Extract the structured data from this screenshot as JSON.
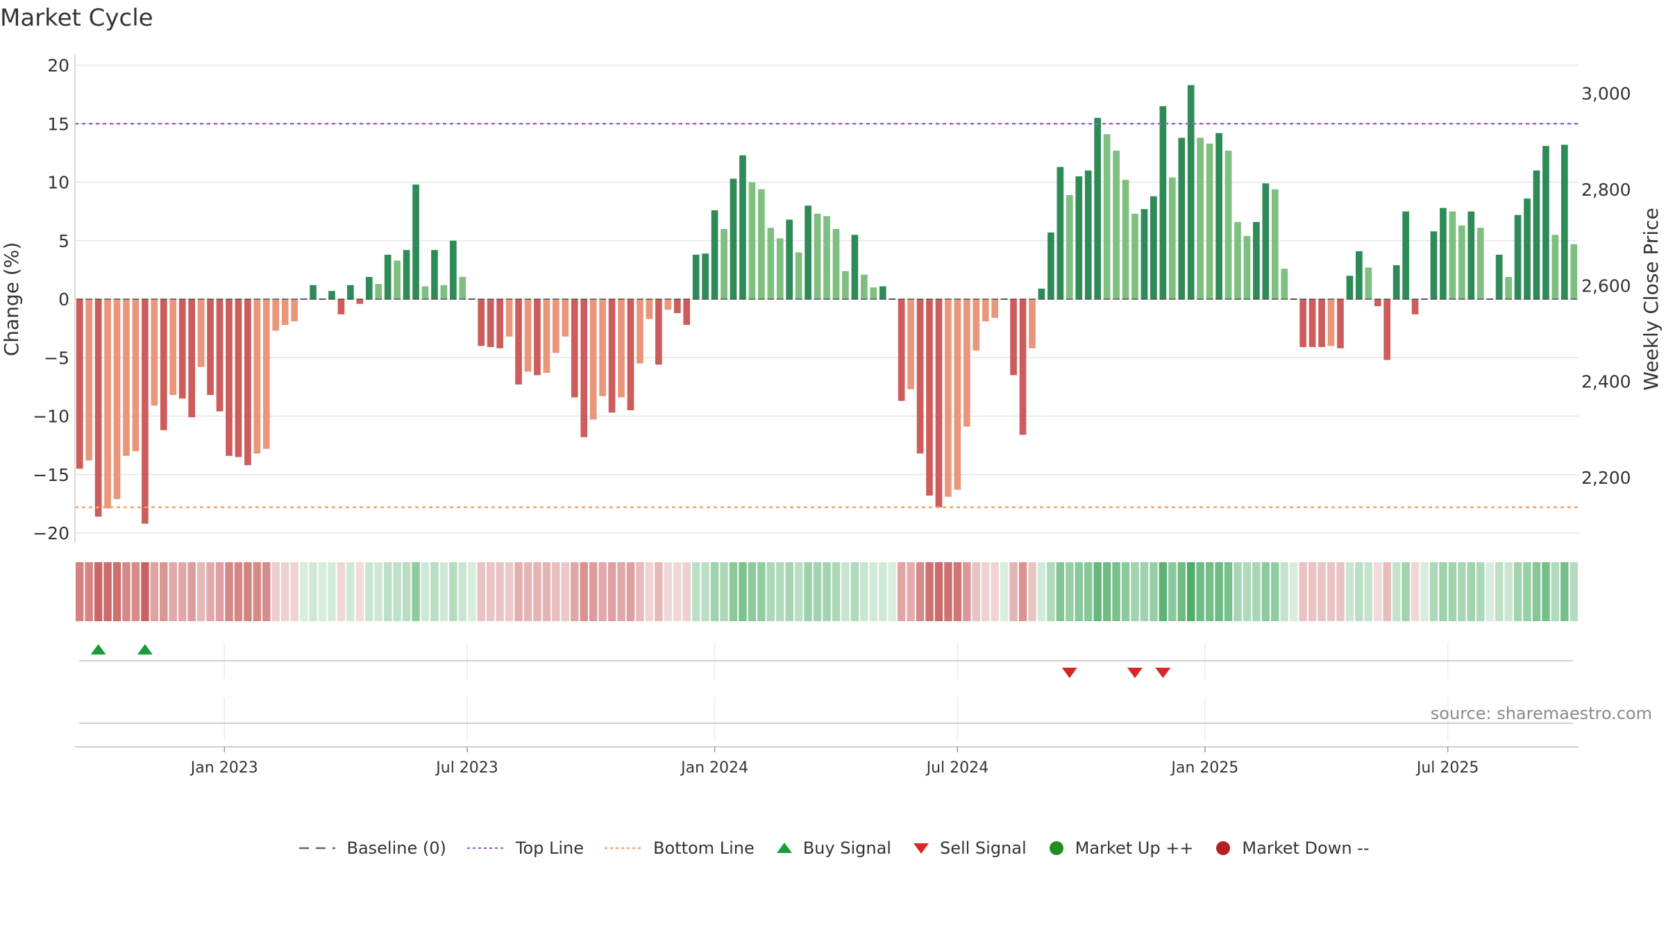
{
  "title": "Market Cycle",
  "source": "source: sharemaestro.com",
  "colors": {
    "strong_up": "#2e8b57",
    "light_up": "#7fbf7f",
    "strong_down": "#cd5c5c",
    "light_down": "#e9967a",
    "top_line": "#9966cc",
    "bottom_line": "#f4a460",
    "buy": "#1a9c3c",
    "sell": "#d62728",
    "market_up": "#228b22",
    "market_down": "#b22222",
    "baseline": "#666666"
  },
  "legend": [
    {
      "key": "baseline",
      "label": "Baseline (0)",
      "symbol": "dash"
    },
    {
      "key": "top",
      "label": "Top Line",
      "symbol": "dot-purple"
    },
    {
      "key": "bottom",
      "label": "Bottom Line",
      "symbol": "dot-orange"
    },
    {
      "key": "buy",
      "label": "Buy Signal",
      "symbol": "tri-up"
    },
    {
      "key": "sell",
      "label": "Sell Signal",
      "symbol": "tri-down"
    },
    {
      "key": "mup",
      "label": "Market Up ++",
      "symbol": "circle-green"
    },
    {
      "key": "mdown",
      "label": "Market Down --",
      "symbol": "circle-red"
    }
  ],
  "chart_data": {
    "type": "bar",
    "title": "Market Cycle",
    "ylabel": "Change (%)",
    "y2label": "Weekly Close Price",
    "ylim": [
      -21,
      21
    ],
    "yticks": [
      20,
      15,
      10,
      5,
      0,
      -5,
      -10,
      -15,
      -20
    ],
    "y2ticks": [
      3000,
      2800,
      2600,
      2400,
      2200
    ],
    "y2tick_labels": [
      "3,000",
      "2,800",
      "2,600",
      "2,400",
      "2,200"
    ],
    "y2lim": [
      2064,
      3082
    ],
    "top_line": 15,
    "bottom_line": -17.8,
    "baseline": 0,
    "xticks": [
      {
        "label": "Jan 2023",
        "week": 16
      },
      {
        "label": "Jul 2023",
        "week": 42
      },
      {
        "label": "Jan 2024",
        "week": 68.5
      },
      {
        "label": "Jul 2024",
        "week": 94.5
      },
      {
        "label": "Jan 2025",
        "week": 121
      },
      {
        "label": "Jul 2025",
        "week": 147
      }
    ],
    "values": [
      -14.5,
      -13.8,
      -18.6,
      -17.9,
      -17.1,
      -13.4,
      -13.0,
      -19.2,
      -9.1,
      -11.2,
      -8.2,
      -8.5,
      -10.1,
      -5.8,
      -8.2,
      -9.6,
      -13.4,
      -13.5,
      -14.2,
      -13.2,
      -12.8,
      -2.7,
      -2.2,
      -1.9,
      0.0,
      1.2,
      0.0,
      0.7,
      -1.3,
      1.2,
      -0.4,
      1.9,
      1.3,
      3.8,
      3.3,
      4.2,
      9.8,
      1.1,
      4.2,
      1.2,
      5.0,
      1.9,
      0.0,
      -4.0,
      -4.1,
      -4.2,
      -3.2,
      -7.3,
      -6.2,
      -6.5,
      -6.3,
      -4.6,
      -3.2,
      -8.4,
      -11.8,
      -10.3,
      -8.3,
      -9.7,
      -8.4,
      -9.5,
      -5.5,
      -1.7,
      -5.6,
      -0.9,
      -1.2,
      -2.2,
      3.8,
      3.9,
      7.6,
      6.0,
      10.3,
      12.3,
      10.0,
      9.4,
      6.1,
      5.2,
      6.8,
      4.0,
      8.0,
      7.3,
      7.1,
      6.0,
      2.4,
      5.5,
      2.1,
      1.0,
      1.1,
      0.0,
      -8.7,
      -7.7,
      -13.2,
      -16.8,
      -17.8,
      -16.9,
      -16.3,
      -10.9,
      -4.4,
      -1.9,
      -1.6,
      0.0,
      -6.5,
      -11.6,
      -4.2,
      0.9,
      5.7,
      11.3,
      8.9,
      10.5,
      11.0,
      15.5,
      14.1,
      12.7,
      10.2,
      7.3,
      7.7,
      8.8,
      16.5,
      10.4,
      13.8,
      18.3,
      13.8,
      13.3,
      14.2,
      12.7,
      6.6,
      5.4,
      6.6,
      9.9,
      9.4,
      2.6,
      0.0,
      -4.1,
      -4.1,
      -4.1,
      -4.0,
      -4.2,
      2.0,
      4.1,
      2.7,
      -0.6,
      -5.2,
      2.9,
      7.5,
      -1.3,
      0.0,
      5.8,
      7.8,
      7.5,
      6.3,
      7.5,
      6.1,
      0.0,
      3.8,
      1.9,
      7.2,
      8.6,
      11.0,
      13.1,
      5.5,
      13.2,
      4.7
    ],
    "buy_signals": [
      2,
      7
    ],
    "sell_signals": [
      106,
      113,
      116
    ]
  }
}
